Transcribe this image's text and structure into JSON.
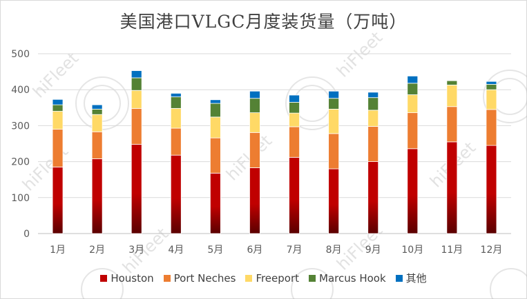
{
  "chart_data": {
    "type": "bar",
    "stacked": true,
    "title": "美国港口VLGC月度装货量（万吨）",
    "categories": [
      "1月",
      "2月",
      "3月",
      "4月",
      "5月",
      "6月",
      "7月",
      "8月",
      "9月",
      "10月",
      "11月",
      "12月"
    ],
    "ylim": [
      0,
      500
    ],
    "yticks": [
      0,
      100,
      200,
      300,
      400,
      500
    ],
    "grid": true,
    "legend_position": "bottom",
    "series": [
      {
        "name": "Houston",
        "color": "#c00000",
        "values": [
          185,
          208,
          248,
          218,
          168,
          183,
          212,
          180,
          200,
          236,
          255,
          245
        ]
      },
      {
        "name": "Port Neches",
        "color": "#ed7d31",
        "values": [
          105,
          75,
          100,
          75,
          98,
          98,
          85,
          98,
          98,
          100,
          98,
          100
        ]
      },
      {
        "name": "Freeport",
        "color": "#ffd966",
        "values": [
          50,
          48,
          50,
          55,
          58,
          55,
          38,
          68,
          45,
          50,
          60,
          55
        ]
      },
      {
        "name": "Marcus Hook",
        "color": "#548235",
        "values": [
          18,
          15,
          35,
          32,
          38,
          40,
          30,
          30,
          35,
          32,
          12,
          15
        ]
      },
      {
        "name": "其他",
        "color": "#0070c0",
        "values": [
          15,
          12,
          20,
          10,
          10,
          20,
          20,
          20,
          15,
          20,
          0,
          8
        ]
      }
    ]
  }
}
